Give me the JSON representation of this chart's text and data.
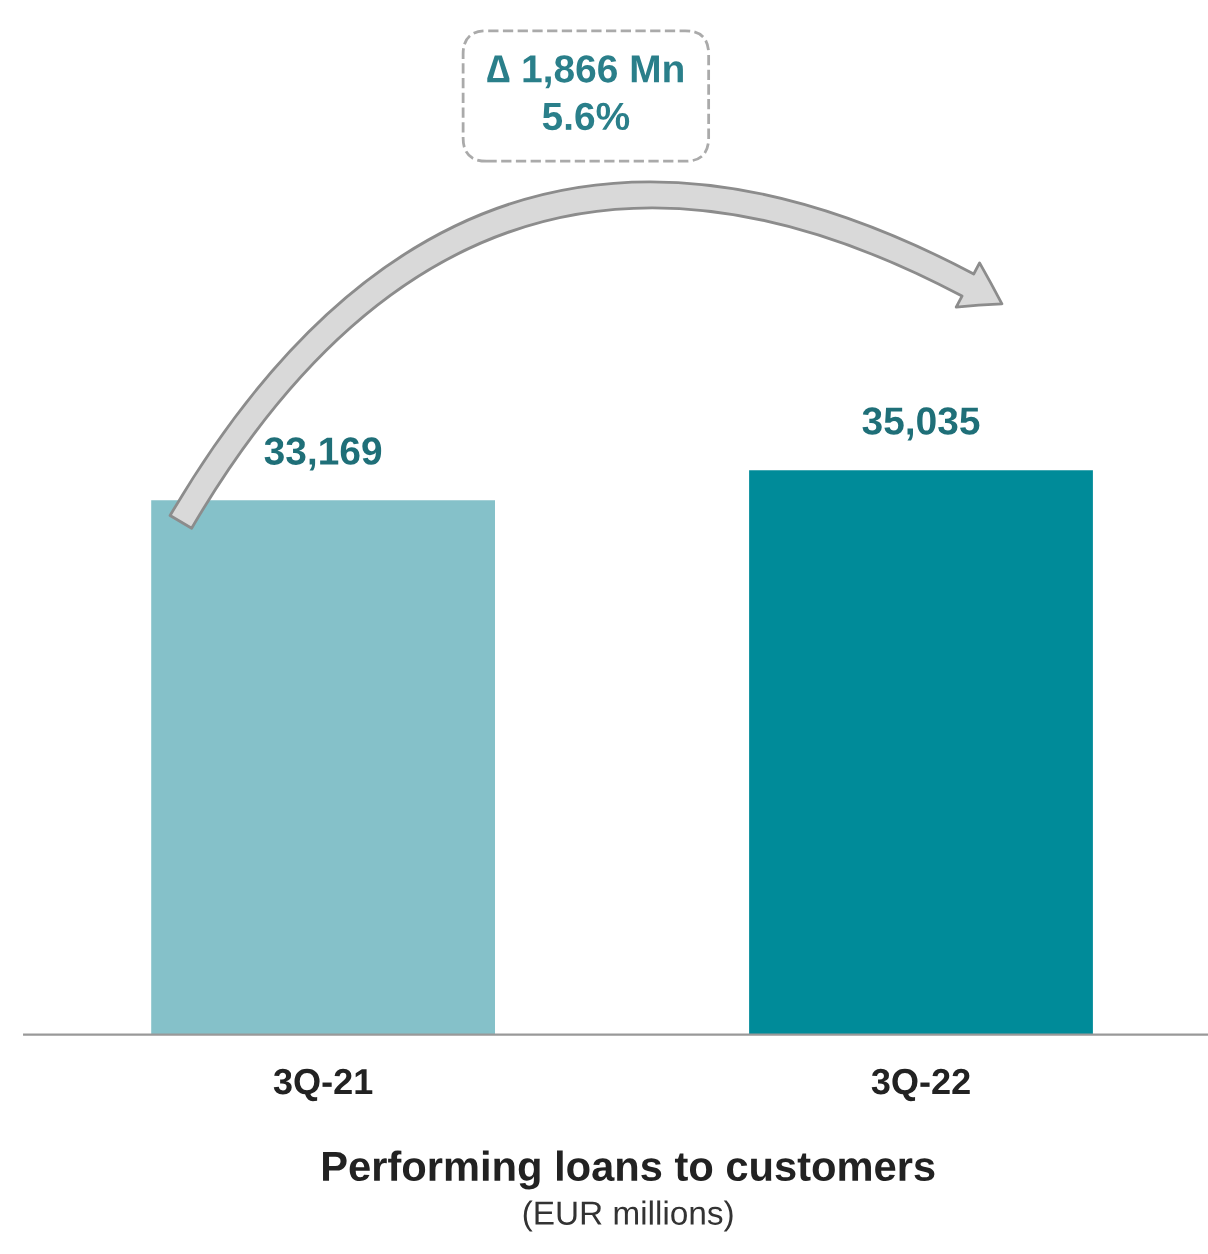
{
  "chart_data": {
    "type": "bar",
    "title": "Performing loans to customers",
    "subtitle": "(EUR millions)",
    "categories": [
      "3Q-21",
      "3Q-22"
    ],
    "values": [
      33169,
      35035
    ],
    "value_labels": [
      "33,169",
      "35,035"
    ],
    "colors": [
      "#85c1c9",
      "#008b99"
    ],
    "tick_labels": "x",
    "annotations": [
      "∆ 1,866 Mn",
      "5.6%"
    ]
  }
}
